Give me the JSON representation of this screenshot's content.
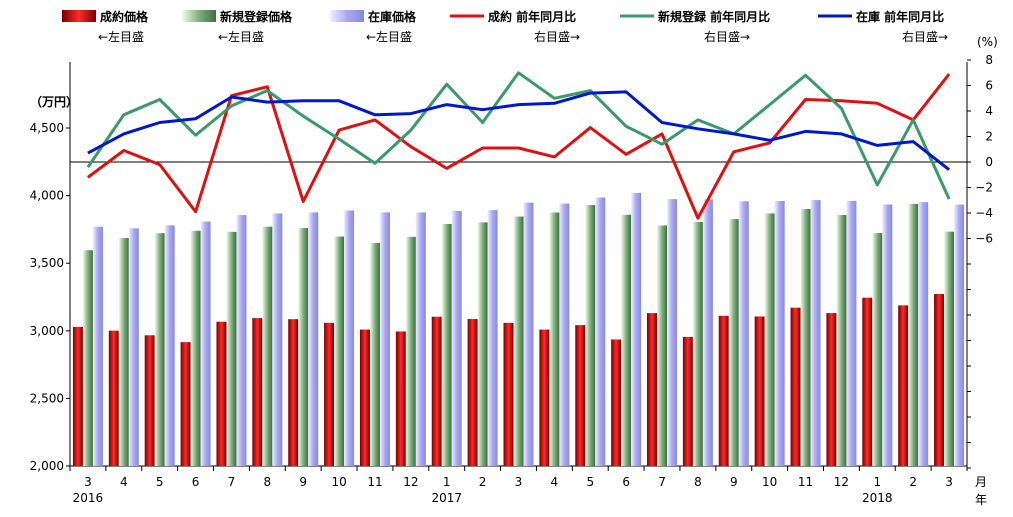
{
  "chart_data": {
    "type": "bar+line",
    "left_unit": "（万円）",
    "right_unit": "(%)",
    "x_unit_month": "月",
    "x_unit_year": "年",
    "categories": [
      "3",
      "4",
      "5",
      "6",
      "7",
      "8",
      "9",
      "10",
      "11",
      "12",
      "1",
      "2",
      "3",
      "4",
      "5",
      "6",
      "7",
      "8",
      "9",
      "10",
      "11",
      "12",
      "1",
      "2",
      "3"
    ],
    "year_labels": [
      {
        "index": 0,
        "label": "2016"
      },
      {
        "index": 10,
        "label": "2017"
      },
      {
        "index": 22,
        "label": "2018"
      }
    ],
    "left_axis": {
      "min": 2000,
      "max": 4500,
      "ticks": [
        "2,000",
        "2,500",
        "3,000",
        "3,500",
        "4,000",
        "4,500"
      ]
    },
    "right_axis": {
      "min": -24,
      "max": 8,
      "ticks": [
        "8",
        "6",
        "4",
        "2",
        "0",
        "−2",
        "−4",
        "−6"
      ]
    },
    "bar_series": [
      {
        "name": "成約価格",
        "axis_note": "←左目盛",
        "color": "#cc0000",
        "values": [
          3029,
          3001,
          2967,
          2916,
          3067,
          3094,
          3086,
          3059,
          3009,
          2995,
          3104,
          3087,
          3059,
          3009,
          3042,
          2936,
          3131,
          2955,
          3111,
          3106,
          3171,
          3131,
          3245,
          3188,
          3272
        ]
      },
      {
        "name": "新規登録価格",
        "axis_note": "←左目盛",
        "color": "#7faf7f",
        "values": [
          3596,
          3686,
          3722,
          3740,
          3732,
          3770,
          3760,
          3697,
          3650,
          3695,
          3790,
          3802,
          3845,
          3875,
          3930,
          3858,
          3779,
          3805,
          3826,
          3868,
          3901,
          3857,
          3723,
          3938,
          3733
        ]
      },
      {
        "name": "在庫価格",
        "axis_note": "←左目盛",
        "color": "#a8a8f0",
        "values": [
          3770,
          3758,
          3780,
          3808,
          3856,
          3868,
          3876,
          3890,
          3876,
          3876,
          3886,
          3893,
          3948,
          3941,
          3986,
          4020,
          3974,
          3972,
          3958,
          3960,
          3967,
          3961,
          3934,
          3952,
          3934
        ]
      }
    ],
    "line_series": [
      {
        "name": "成約 前年同月比",
        "axis_note": "右目盛→",
        "color": "#e01010",
        "values": [
          -1.2,
          0.9,
          -0.2,
          -3.9,
          5.2,
          5.9,
          -3.1,
          2.5,
          3.3,
          1.2,
          -0.5,
          1.1,
          1.1,
          0.4,
          2.7,
          0.6,
          2.2,
          -4.4,
          0.8,
          1.5,
          4.9,
          4.8,
          4.6,
          3.3,
          6.9
        ]
      },
      {
        "name": "新規登録 前年同月比",
        "axis_note": "右目盛→",
        "color": "#3a9a6a",
        "values": [
          -0.4,
          3.7,
          4.9,
          2.1,
          4.4,
          5.6,
          3.6,
          1.8,
          -0.1,
          2.5,
          6.1,
          3.1,
          7.0,
          5.0,
          5.6,
          2.8,
          1.4,
          3.3,
          2.2,
          4.5,
          6.8,
          4.2,
          -1.8,
          3.3,
          -2.9
        ]
      },
      {
        "name": "在庫 前年同月比",
        "axis_note": "右目盛→",
        "color": "#0018cc",
        "values": [
          0.7,
          2.2,
          3.1,
          3.4,
          5.1,
          4.7,
          4.8,
          4.8,
          3.7,
          3.8,
          4.5,
          4.1,
          4.5,
          4.6,
          5.4,
          5.5,
          3.1,
          2.6,
          2.2,
          1.7,
          2.4,
          2.2,
          1.3,
          1.6,
          -0.6
        ]
      }
    ],
    "grid": false,
    "legend": "top"
  }
}
